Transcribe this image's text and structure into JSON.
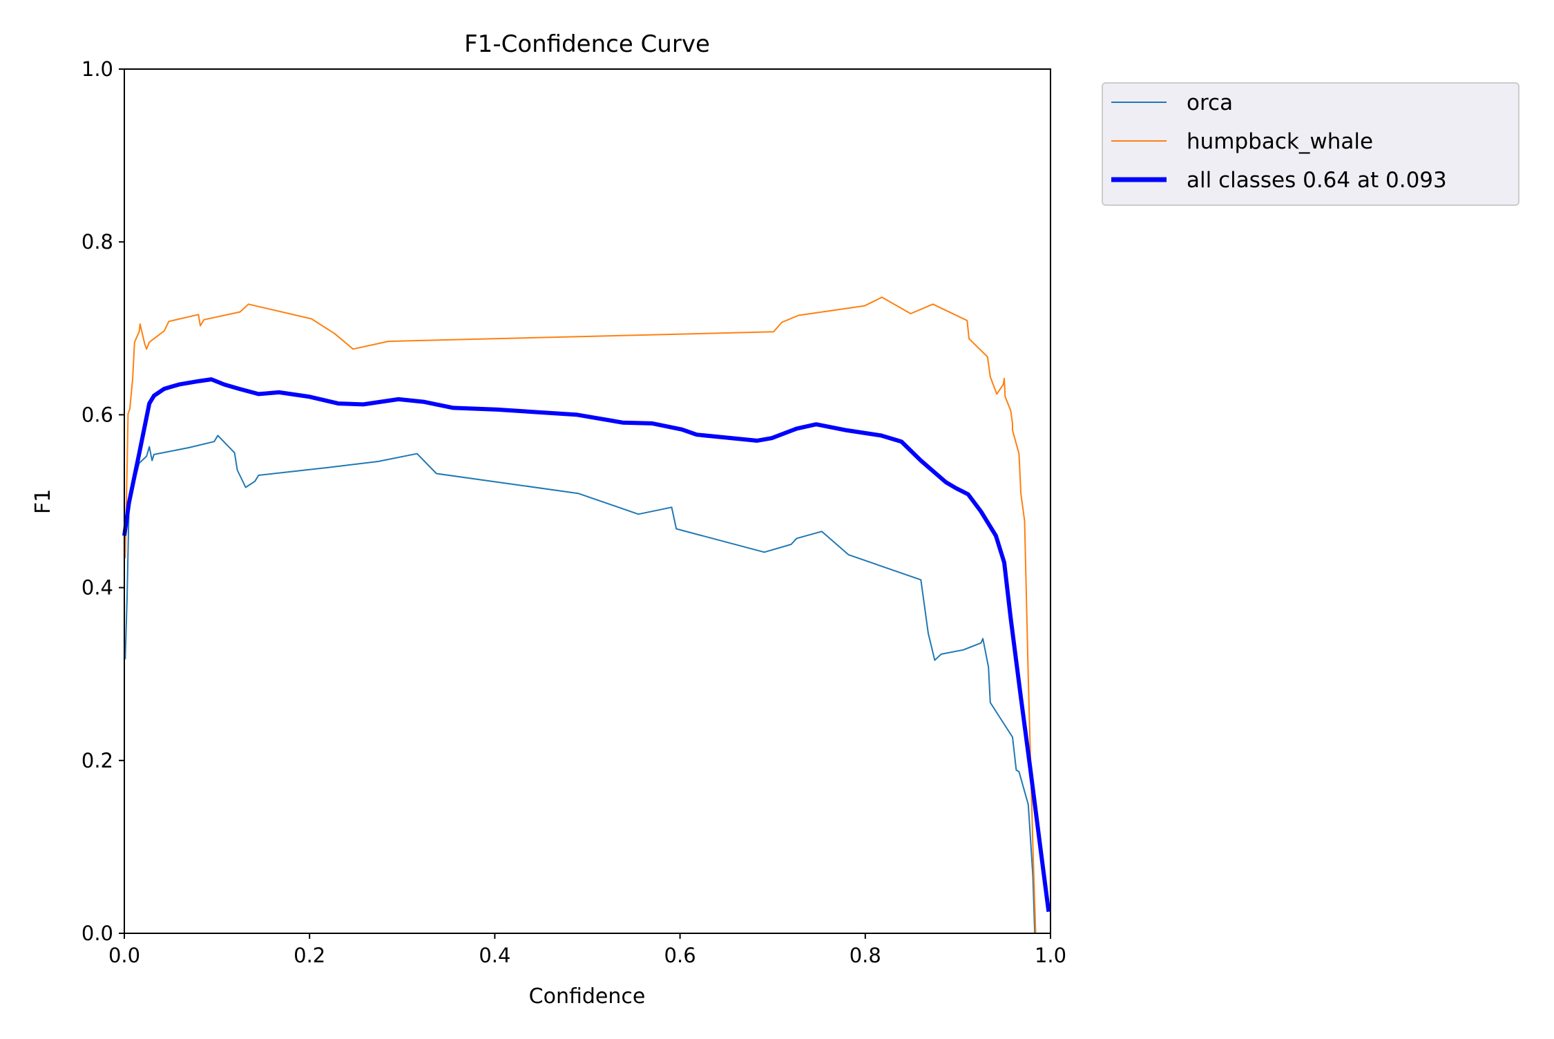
{
  "chart_data": {
    "type": "line",
    "title": "F1-Confidence Curve",
    "xlabel": "Confidence",
    "ylabel": "F1",
    "xlim": [
      0,
      1
    ],
    "ylim": [
      0,
      1
    ],
    "grid": false,
    "legend_position": "outside-top-right",
    "xticks": [
      "0.0",
      "0.2",
      "0.4",
      "0.6",
      "0.8",
      "1.0"
    ],
    "yticks": [
      "0.0",
      "0.2",
      "0.4",
      "0.6",
      "0.8",
      "1.0"
    ],
    "series": [
      {
        "name": "orca",
        "color": "#1f77b4",
        "width": 2,
        "points": [
          [
            0.001,
            0.317
          ],
          [
            0.003,
            0.388
          ],
          [
            0.005,
            0.492
          ],
          [
            0.009,
            0.515
          ],
          [
            0.016,
            0.544
          ],
          [
            0.024,
            0.552
          ],
          [
            0.027,
            0.563
          ],
          [
            0.03,
            0.547
          ],
          [
            0.032,
            0.554
          ],
          [
            0.07,
            0.562
          ],
          [
            0.097,
            0.569
          ],
          [
            0.101,
            0.576
          ],
          [
            0.119,
            0.556
          ],
          [
            0.122,
            0.536
          ],
          [
            0.131,
            0.516
          ],
          [
            0.141,
            0.523
          ],
          [
            0.145,
            0.53
          ],
          [
            0.22,
            0.539
          ],
          [
            0.274,
            0.546
          ],
          [
            0.316,
            0.555
          ],
          [
            0.337,
            0.532
          ],
          [
            0.49,
            0.509
          ],
          [
            0.555,
            0.485
          ],
          [
            0.591,
            0.493
          ],
          [
            0.596,
            0.468
          ],
          [
            0.691,
            0.441
          ],
          [
            0.72,
            0.45
          ],
          [
            0.726,
            0.457
          ],
          [
            0.753,
            0.465
          ],
          [
            0.782,
            0.438
          ],
          [
            0.86,
            0.409
          ],
          [
            0.868,
            0.347
          ],
          [
            0.875,
            0.316
          ],
          [
            0.882,
            0.323
          ],
          [
            0.906,
            0.328
          ],
          [
            0.925,
            0.336
          ],
          [
            0.927,
            0.341
          ],
          [
            0.933,
            0.308
          ],
          [
            0.935,
            0.267
          ],
          [
            0.959,
            0.227
          ],
          [
            0.963,
            0.189
          ],
          [
            0.966,
            0.187
          ],
          [
            0.976,
            0.149
          ],
          [
            0.981,
            0.066
          ],
          [
            0.983,
            0.0
          ]
        ]
      },
      {
        "name": "humpback_whale",
        "color": "#ff7f0e",
        "width": 2,
        "points": [
          [
            0.001,
            0.434
          ],
          [
            0.003,
            0.538
          ],
          [
            0.004,
            0.601
          ],
          [
            0.006,
            0.607
          ],
          [
            0.009,
            0.642
          ],
          [
            0.011,
            0.684
          ],
          [
            0.016,
            0.696
          ],
          [
            0.017,
            0.705
          ],
          [
            0.022,
            0.682
          ],
          [
            0.024,
            0.676
          ],
          [
            0.027,
            0.684
          ],
          [
            0.043,
            0.697
          ],
          [
            0.048,
            0.708
          ],
          [
            0.08,
            0.716
          ],
          [
            0.082,
            0.703
          ],
          [
            0.086,
            0.71
          ],
          [
            0.125,
            0.719
          ],
          [
            0.134,
            0.728
          ],
          [
            0.202,
            0.711
          ],
          [
            0.227,
            0.694
          ],
          [
            0.247,
            0.676
          ],
          [
            0.285,
            0.685
          ],
          [
            0.701,
            0.696
          ],
          [
            0.71,
            0.707
          ],
          [
            0.728,
            0.715
          ],
          [
            0.799,
            0.726
          ],
          [
            0.818,
            0.736
          ],
          [
            0.849,
            0.717
          ],
          [
            0.873,
            0.728
          ],
          [
            0.91,
            0.709
          ],
          [
            0.912,
            0.688
          ],
          [
            0.932,
            0.667
          ],
          [
            0.935,
            0.644
          ],
          [
            0.942,
            0.624
          ],
          [
            0.949,
            0.635
          ],
          [
            0.95,
            0.642
          ],
          [
            0.951,
            0.621
          ],
          [
            0.957,
            0.605
          ],
          [
            0.959,
            0.59
          ],
          [
            0.959,
            0.582
          ],
          [
            0.966,
            0.555
          ],
          [
            0.968,
            0.509
          ],
          [
            0.972,
            0.477
          ],
          [
            0.976,
            0.296
          ],
          [
            0.981,
            0.1
          ],
          [
            0.984,
            0.0
          ]
        ]
      },
      {
        "name": "all classes 0.64 at 0.093",
        "color": "#0000ff",
        "width": 6,
        "points": [
          [
            0.0,
            0.46
          ],
          [
            0.005,
            0.498
          ],
          [
            0.016,
            0.555
          ],
          [
            0.027,
            0.613
          ],
          [
            0.032,
            0.622
          ],
          [
            0.043,
            0.63
          ],
          [
            0.059,
            0.635
          ],
          [
            0.081,
            0.639
          ],
          [
            0.094,
            0.641
          ],
          [
            0.108,
            0.635
          ],
          [
            0.124,
            0.63
          ],
          [
            0.145,
            0.624
          ],
          [
            0.167,
            0.626
          ],
          [
            0.199,
            0.621
          ],
          [
            0.231,
            0.613
          ],
          [
            0.258,
            0.612
          ],
          [
            0.296,
            0.618
          ],
          [
            0.323,
            0.615
          ],
          [
            0.355,
            0.608
          ],
          [
            0.403,
            0.606
          ],
          [
            0.489,
            0.6
          ],
          [
            0.538,
            0.591
          ],
          [
            0.57,
            0.59
          ],
          [
            0.602,
            0.583
          ],
          [
            0.618,
            0.577
          ],
          [
            0.683,
            0.57
          ],
          [
            0.699,
            0.573
          ],
          [
            0.726,
            0.584
          ],
          [
            0.747,
            0.589
          ],
          [
            0.78,
            0.582
          ],
          [
            0.817,
            0.576
          ],
          [
            0.839,
            0.569
          ],
          [
            0.86,
            0.547
          ],
          [
            0.887,
            0.522
          ],
          [
            0.898,
            0.515
          ],
          [
            0.911,
            0.508
          ],
          [
            0.925,
            0.488
          ],
          [
            0.941,
            0.46
          ],
          [
            0.95,
            0.429
          ],
          [
            0.957,
            0.365
          ],
          [
            0.968,
            0.273
          ],
          [
            0.978,
            0.192
          ],
          [
            0.989,
            0.1
          ],
          [
            0.998,
            0.025
          ]
        ]
      }
    ]
  }
}
